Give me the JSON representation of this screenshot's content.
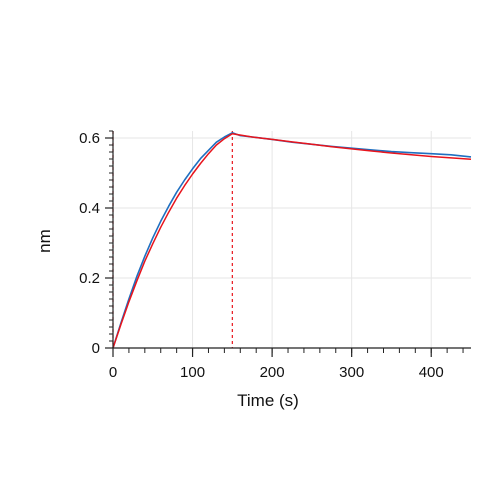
{
  "chart_data": {
    "type": "line",
    "title": "",
    "xlabel": "Time (s)",
    "ylabel": "nm",
    "xlim": [
      0,
      450
    ],
    "ylim": [
      0,
      0.62
    ],
    "x_ticks": [
      0,
      100,
      200,
      300,
      400
    ],
    "x_tick_labels": [
      "0",
      "100",
      "200",
      "300",
      "400"
    ],
    "y_ticks": [
      0,
      0.2,
      0.4,
      0.6
    ],
    "y_tick_labels": [
      "0",
      "0.2",
      "0.4",
      "0.6"
    ],
    "grid": true,
    "legend": "none",
    "reference_lines": [
      {
        "x": 0,
        "color": "#e8141c",
        "style": "dashed"
      },
      {
        "x": 150,
        "color": "#e8141c",
        "style": "dashed"
      }
    ],
    "series": [
      {
        "role": "measured",
        "color": "#1f6fc0",
        "x": [
          0,
          10,
          20,
          30,
          40,
          50,
          60,
          70,
          80,
          90,
          100,
          110,
          120,
          130,
          140,
          150,
          160,
          175,
          200,
          225,
          250,
          275,
          300,
          325,
          350,
          375,
          400,
          425,
          450
        ],
        "y": [
          0,
          0.072,
          0.14,
          0.205,
          0.262,
          0.315,
          0.362,
          0.405,
          0.445,
          0.48,
          0.512,
          0.541,
          0.565,
          0.588,
          0.603,
          0.615,
          0.607,
          0.603,
          0.596,
          0.588,
          0.582,
          0.576,
          0.571,
          0.566,
          0.561,
          0.558,
          0.555,
          0.552,
          0.546
        ]
      },
      {
        "role": "fit",
        "color": "#e8141c",
        "x": [
          0,
          10,
          20,
          30,
          40,
          50,
          60,
          70,
          80,
          90,
          100,
          110,
          120,
          130,
          140,
          150,
          175,
          200,
          225,
          250,
          275,
          300,
          325,
          350,
          375,
          400,
          425,
          450
        ],
        "y": [
          0,
          0.068,
          0.132,
          0.192,
          0.248,
          0.298,
          0.345,
          0.388,
          0.428,
          0.464,
          0.497,
          0.527,
          0.555,
          0.58,
          0.598,
          0.612,
          0.603,
          0.596,
          0.589,
          0.582,
          0.575,
          0.569,
          0.563,
          0.557,
          0.552,
          0.547,
          0.543,
          0.539
        ]
      }
    ],
    "colors": {
      "grid": "#e6e6e6",
      "axis": "#222222"
    }
  }
}
